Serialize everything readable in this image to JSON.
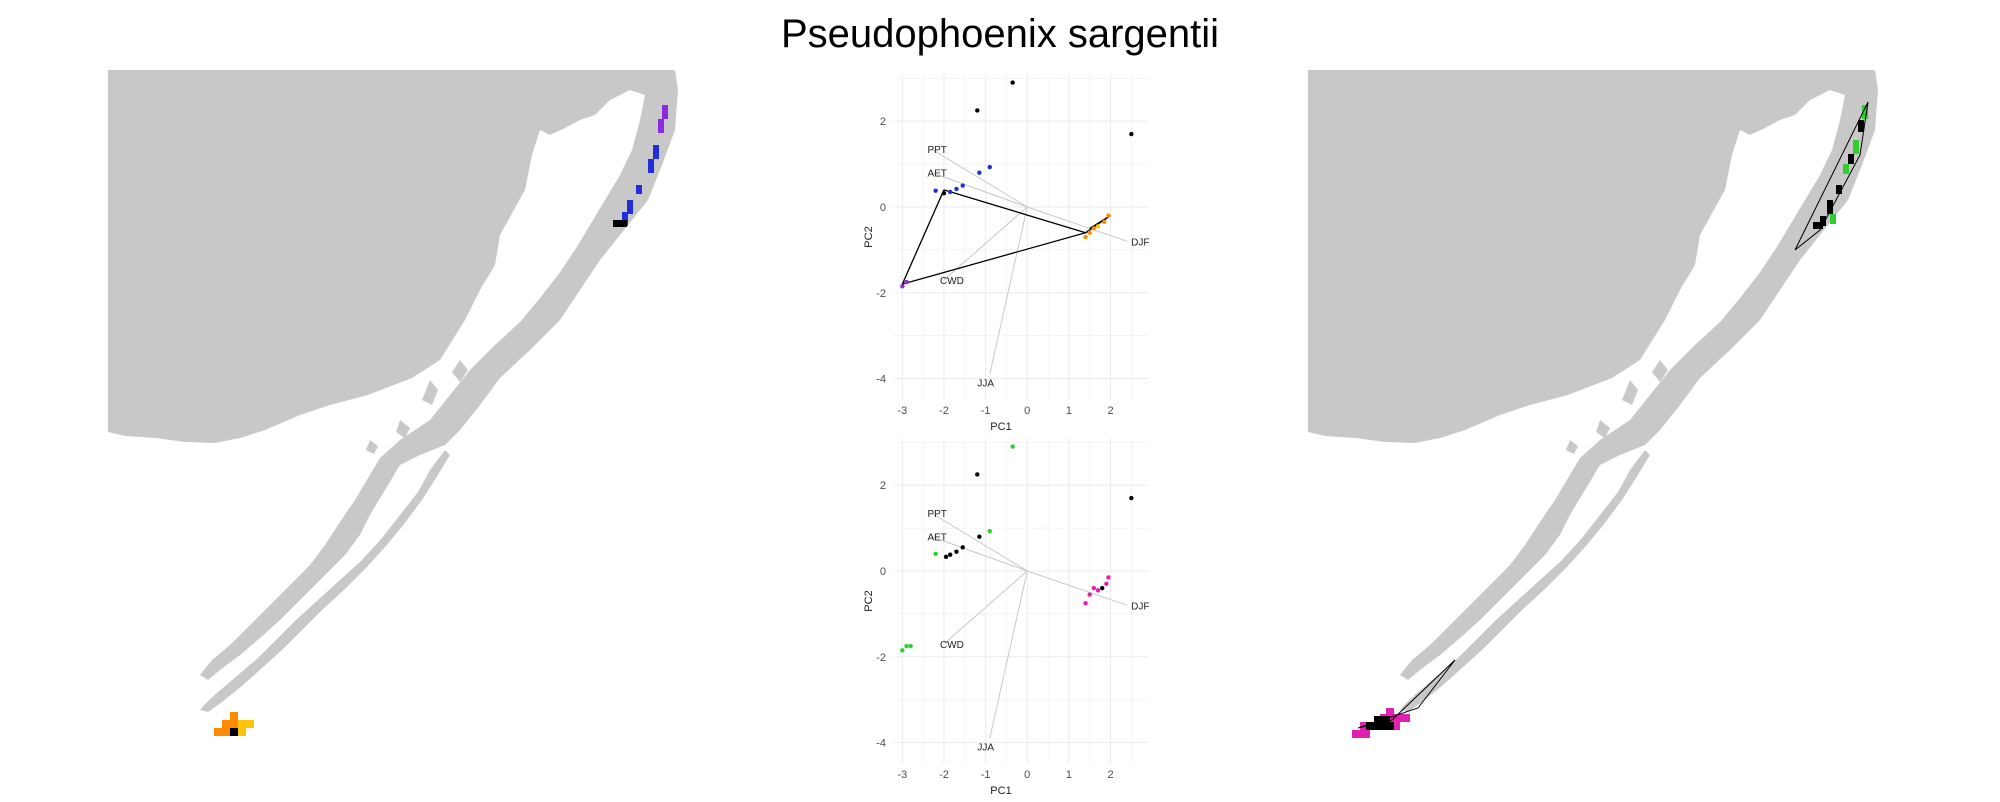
{
  "title": "Pseudophoenix sargentii",
  "colors": {
    "land": "#c8c8c8",
    "grid": "#ebebeb",
    "vector": "#c9c9c9",
    "hull": "#000000",
    "blue": "#1f2fdc",
    "purple": "#8a2be2",
    "orange": "#ff8c00",
    "gold": "#ffc20a",
    "green": "#2fcf2f",
    "magenta": "#e020b0",
    "black": "#000000"
  },
  "chart_data": [
    {
      "type": "scatter",
      "title": "",
      "xlabel": "PC1",
      "ylabel": "PC2",
      "xlim": [
        -3.2,
        2.9
      ],
      "ylim": [
        -4.5,
        3.1
      ],
      "xticks": [
        -3,
        -2,
        -1,
        0,
        1,
        2
      ],
      "yticks": [
        2,
        0,
        -2,
        -4
      ],
      "grid": true,
      "vectors": [
        {
          "label": "PPT",
          "x": -2.3,
          "y": 1.35
        },
        {
          "label": "AET",
          "x": -2.3,
          "y": 0.8
        },
        {
          "label": "CWD",
          "x": -2.0,
          "y": -1.7
        },
        {
          "label": "DJF",
          "x": 2.4,
          "y": -0.8
        },
        {
          "label": "JJA",
          "x": -0.9,
          "y": -3.9
        }
      ],
      "points": [
        {
          "x": -0.35,
          "y": 2.9,
          "c": "black"
        },
        {
          "x": -1.2,
          "y": 2.25,
          "c": "black"
        },
        {
          "x": 2.5,
          "y": 1.7,
          "c": "black"
        },
        {
          "x": -0.9,
          "y": 0.93,
          "c": "blue"
        },
        {
          "x": -1.15,
          "y": 0.8,
          "c": "blue"
        },
        {
          "x": -1.55,
          "y": 0.5,
          "c": "blue"
        },
        {
          "x": -1.7,
          "y": 0.42,
          "c": "blue"
        },
        {
          "x": -1.85,
          "y": 0.35,
          "c": "blue"
        },
        {
          "x": -2.0,
          "y": 0.32,
          "c": "black"
        },
        {
          "x": -2.2,
          "y": 0.38,
          "c": "blue"
        },
        {
          "x": -3.0,
          "y": -1.85,
          "c": "purple"
        },
        {
          "x": -2.9,
          "y": -1.75,
          "c": "purple"
        },
        {
          "x": 1.95,
          "y": -0.2,
          "c": "orange"
        },
        {
          "x": 1.85,
          "y": -0.35,
          "c": "orange"
        },
        {
          "x": 1.7,
          "y": -0.45,
          "c": "gold"
        },
        {
          "x": 1.6,
          "y": -0.5,
          "c": "orange"
        },
        {
          "x": 1.5,
          "y": -0.6,
          "c": "orange"
        },
        {
          "x": 1.4,
          "y": -0.7,
          "c": "orange"
        }
      ],
      "hull": [
        [
          -2.0,
          0.4
        ],
        [
          -3.0,
          -1.8
        ],
        [
          1.4,
          -0.6
        ],
        [
          -2.0,
          0.4
        ]
      ],
      "hull2": [
        [
          1.4,
          -0.6
        ],
        [
          2.0,
          -0.2
        ],
        [
          1.5,
          -0.5
        ]
      ]
    },
    {
      "type": "scatter",
      "title": "",
      "xlabel": "PC1",
      "ylabel": "PC2",
      "xlim": [
        -3.2,
        2.9
      ],
      "ylim": [
        -4.5,
        3.1
      ],
      "xticks": [
        -3,
        -2,
        -1,
        0,
        1,
        2
      ],
      "yticks": [
        2,
        0,
        -2,
        -4
      ],
      "grid": true,
      "vectors": [
        {
          "label": "PPT",
          "x": -2.3,
          "y": 1.35
        },
        {
          "label": "AET",
          "x": -2.3,
          "y": 0.8
        },
        {
          "label": "CWD",
          "x": -2.0,
          "y": -1.7
        },
        {
          "label": "DJF",
          "x": 2.4,
          "y": -0.8
        },
        {
          "label": "JJA",
          "x": -0.9,
          "y": -3.9
        }
      ],
      "points": [
        {
          "x": -0.35,
          "y": 2.9,
          "c": "green"
        },
        {
          "x": -1.2,
          "y": 2.25,
          "c": "black"
        },
        {
          "x": 2.5,
          "y": 1.7,
          "c": "black"
        },
        {
          "x": -0.9,
          "y": 0.93,
          "c": "green"
        },
        {
          "x": -1.15,
          "y": 0.8,
          "c": "black"
        },
        {
          "x": -1.55,
          "y": 0.55,
          "c": "black"
        },
        {
          "x": -1.7,
          "y": 0.45,
          "c": "black"
        },
        {
          "x": -1.85,
          "y": 0.38,
          "c": "black"
        },
        {
          "x": -1.95,
          "y": 0.33,
          "c": "black"
        },
        {
          "x": -2.2,
          "y": 0.4,
          "c": "green"
        },
        {
          "x": -3.0,
          "y": -1.85,
          "c": "green"
        },
        {
          "x": -2.9,
          "y": -1.75,
          "c": "green"
        },
        {
          "x": -2.8,
          "y": -1.75,
          "c": "green"
        },
        {
          "x": 1.95,
          "y": -0.15,
          "c": "magenta"
        },
        {
          "x": 1.9,
          "y": -0.3,
          "c": "magenta"
        },
        {
          "x": 1.8,
          "y": -0.4,
          "c": "black"
        },
        {
          "x": 1.7,
          "y": -0.45,
          "c": "magenta"
        },
        {
          "x": 1.6,
          "y": -0.4,
          "c": "magenta"
        },
        {
          "x": 1.5,
          "y": -0.55,
          "c": "magenta"
        },
        {
          "x": 1.4,
          "y": -0.75,
          "c": "magenta"
        }
      ]
    }
  ]
}
